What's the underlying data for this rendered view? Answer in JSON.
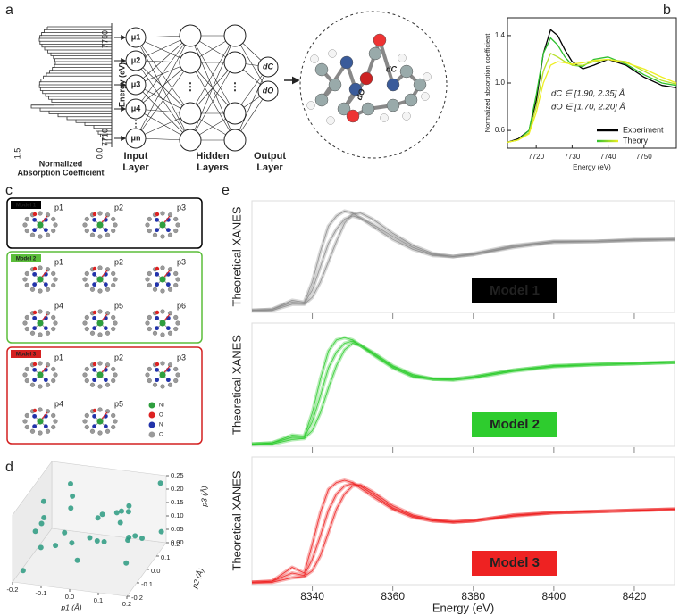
{
  "figure": {
    "panel_labels": [
      "a",
      "b",
      "c",
      "d",
      "e"
    ],
    "panel_a": {
      "energy_max": "7760",
      "energy_min": "7710",
      "energy_label": "Energy (eV)",
      "absorption_max": "1.5",
      "absorption_min": "0.0",
      "absorption_label": [
        "Normalized",
        "Absorption Coefficient"
      ],
      "inputs": [
        "μ1",
        "μ2",
        "μ3",
        "μ4",
        "μn"
      ],
      "input_layer": [
        "Input",
        "Layer"
      ],
      "hidden_layers": [
        "Hidden",
        "Layers"
      ],
      "output_layer": [
        "Output",
        "Layer"
      ],
      "outputs": [
        "dC",
        "dO"
      ]
    },
    "panel_c": {
      "models": [
        {
          "name": "Model 1",
          "params": [
            "p1",
            "p2",
            "p3"
          ]
        },
        {
          "name": "Model 2",
          "params": [
            "p1",
            "p2",
            "p3",
            "p4",
            "p5",
            "p6"
          ]
        },
        {
          "name": "Model 3",
          "params": [
            "p1",
            "p2",
            "p3",
            "p4",
            "p5"
          ]
        }
      ],
      "legend": [
        "Ni",
        "O",
        "N",
        "C"
      ]
    }
  },
  "chart_data": [
    {
      "type": "line",
      "x": [
        7712,
        7715,
        7718,
        7720,
        7722,
        7724,
        7726,
        7728,
        7730,
        7733,
        7736,
        7740,
        7745,
        7750,
        7755,
        7759
      ],
      "xlim": [
        7712,
        7759
      ],
      "xticks": [
        7720,
        7730,
        7740,
        7750
      ],
      "ylim": [
        0.45,
        1.55
      ],
      "yticks": [
        0.6,
        {
          "value": 1,
          "label": "1.0"
        },
        1.4
      ],
      "xlabel": "Energy (eV)",
      "ylabel": "Normalized absorption coefficient",
      "annotations": [
        "dC ∈ [1.90, 2.35] Å",
        "dO ∈ [1.70, 2.20] Å"
      ],
      "legend": "lower right",
      "series": [
        {
          "name": "Experiment",
          "color": "#000000",
          "values": [
            0.5,
            0.53,
            0.6,
            0.85,
            1.25,
            1.45,
            1.4,
            1.28,
            1.18,
            1.12,
            1.15,
            1.2,
            1.15,
            1.05,
            0.98,
            0.96
          ]
        },
        {
          "name": "Theory",
          "color": "#2fc02f",
          "values": [
            0.5,
            0.52,
            0.6,
            0.9,
            1.25,
            1.38,
            1.32,
            1.22,
            1.15,
            1.14,
            1.2,
            1.22,
            1.16,
            1.07,
            1.0,
            0.98
          ]
        },
        {
          "color": "#b6e02a",
          "values": [
            0.5,
            0.52,
            0.58,
            0.8,
            1.1,
            1.25,
            1.22,
            1.18,
            1.15,
            1.15,
            1.18,
            1.2,
            1.18,
            1.1,
            1.02,
            0.99
          ]
        },
        {
          "color": "#eeee22",
          "values": [
            0.5,
            0.52,
            0.57,
            0.75,
            1.0,
            1.15,
            1.18,
            1.17,
            1.16,
            1.17,
            1.19,
            1.2,
            1.17,
            1.12,
            1.05,
            1.0
          ]
        }
      ]
    },
    {
      "type": "line",
      "x": [
        8325,
        8330,
        8335,
        8338,
        8340,
        8342,
        8344,
        8346,
        8348,
        8350,
        8352,
        8355,
        8360,
        8365,
        8370,
        8375,
        8380,
        8390,
        8400,
        8410,
        8420,
        8430
      ],
      "xlim": [
        8325,
        8430
      ],
      "ylim": [
        0,
        1.1
      ],
      "ylabel": "Theoretical XANES",
      "annotation": "Model 1",
      "series": [
        {
          "color": "#8c8c8c",
          "values": [
            0.02,
            0.03,
            0.12,
            0.1,
            0.3,
            0.6,
            0.85,
            0.95,
            1.0,
            0.98,
            0.93,
            0.85,
            0.72,
            0.62,
            0.56,
            0.55,
            0.58,
            0.66,
            0.7,
            0.7,
            0.72,
            0.72
          ]
        },
        {
          "color": "#8c8c8c",
          "values": [
            0.02,
            0.02,
            0.08,
            0.08,
            0.15,
            0.3,
            0.5,
            0.7,
            0.88,
            0.97,
            0.98,
            0.92,
            0.78,
            0.66,
            0.58,
            0.55,
            0.57,
            0.64,
            0.69,
            0.7,
            0.71,
            0.72
          ]
        },
        {
          "color": "#8c8c8c",
          "values": [
            0.02,
            0.03,
            0.1,
            0.09,
            0.22,
            0.45,
            0.68,
            0.82,
            0.92,
            0.95,
            0.93,
            0.87,
            0.75,
            0.64,
            0.57,
            0.55,
            0.57,
            0.65,
            0.7,
            0.7,
            0.71,
            0.72
          ]
        }
      ]
    },
    {
      "type": "line",
      "x": [
        8325,
        8330,
        8335,
        8338,
        8340,
        8342,
        8344,
        8346,
        8348,
        8350,
        8352,
        8355,
        8360,
        8365,
        8370,
        8375,
        8380,
        8390,
        8400,
        8410,
        8420,
        8430
      ],
      "xlim": [
        8325,
        8430
      ],
      "ylim": [
        0,
        1.1
      ],
      "ylabel": "Theoretical XANES",
      "annotation": "Model 2",
      "series": [
        {
          "color": "#2ecc2e",
          "values": [
            0.02,
            0.03,
            0.1,
            0.09,
            0.3,
            0.6,
            0.85,
            0.95,
            0.97,
            0.95,
            0.9,
            0.82,
            0.7,
            0.62,
            0.6,
            0.6,
            0.62,
            0.68,
            0.72,
            0.73,
            0.74,
            0.75
          ]
        },
        {
          "color": "#2ecc2e",
          "values": [
            0.02,
            0.02,
            0.06,
            0.07,
            0.14,
            0.3,
            0.52,
            0.72,
            0.86,
            0.92,
            0.9,
            0.84,
            0.72,
            0.64,
            0.6,
            0.59,
            0.61,
            0.67,
            0.71,
            0.73,
            0.74,
            0.75
          ]
        },
        {
          "color": "#2ecc2e",
          "values": [
            0.02,
            0.03,
            0.08,
            0.08,
            0.22,
            0.45,
            0.7,
            0.84,
            0.92,
            0.94,
            0.9,
            0.83,
            0.71,
            0.63,
            0.6,
            0.6,
            0.62,
            0.68,
            0.72,
            0.73,
            0.74,
            0.75
          ]
        }
      ]
    },
    {
      "type": "line",
      "x": [
        8325,
        8330,
        8335,
        8338,
        8340,
        8342,
        8344,
        8346,
        8348,
        8350,
        8352,
        8355,
        8360,
        8365,
        8370,
        8375,
        8380,
        8390,
        8400,
        8410,
        8420,
        8430
      ],
      "xlim": [
        8325,
        8430
      ],
      "xticks": [
        8340,
        8360,
        8380,
        8400,
        8420
      ],
      "ylim": [
        0,
        1.1
      ],
      "xlabel": "Energy (eV)",
      "ylabel": "Theoretical XANES",
      "annotation": "Model 3",
      "series": [
        {
          "color": "#ee2222",
          "values": [
            0.02,
            0.03,
            0.15,
            0.1,
            0.35,
            0.62,
            0.82,
            0.88,
            0.9,
            0.88,
            0.83,
            0.76,
            0.65,
            0.58,
            0.55,
            0.54,
            0.55,
            0.6,
            0.62,
            0.63,
            0.64,
            0.65
          ]
        },
        {
          "color": "#ee2222",
          "values": [
            0.02,
            0.02,
            0.06,
            0.07,
            0.12,
            0.25,
            0.45,
            0.65,
            0.78,
            0.85,
            0.86,
            0.8,
            0.68,
            0.6,
            0.56,
            0.54,
            0.55,
            0.59,
            0.62,
            0.63,
            0.64,
            0.65
          ]
        },
        {
          "color": "#ee2222",
          "values": [
            0.02,
            0.03,
            0.1,
            0.08,
            0.22,
            0.42,
            0.64,
            0.78,
            0.85,
            0.87,
            0.85,
            0.78,
            0.66,
            0.59,
            0.55,
            0.54,
            0.55,
            0.6,
            0.62,
            0.63,
            0.64,
            0.65
          ]
        }
      ]
    },
    {
      "type": "scatter3d",
      "x": [
        -0.18,
        -0.1,
        0.02,
        0.12,
        0.19,
        -0.15,
        -0.05,
        0.08,
        0.16,
        -0.2,
        -0.12,
        0.0,
        0.1,
        0.18,
        -0.08,
        0.05,
        0.14,
        -0.17,
        -0.02,
        0.09,
        0.2,
        -0.13,
        0.03,
        0.15,
        -0.06,
        0.11,
        -0.19,
        0.07,
        -0.09,
        0.17
      ],
      "y": [
        -0.15,
        0.1,
        -0.18,
        0.05,
        0.18,
        -0.05,
        0.15,
        -0.1,
        0.0,
        0.12,
        -0.2,
        0.08,
        -0.14,
        0.2,
        -0.02,
        0.17,
        -0.08,
        0.03,
        -0.12,
        0.13,
        -0.18,
        0.19,
        0.0,
        0.1,
        -0.17,
        -0.04,
        0.06,
        0.2,
        0.09,
        -0.12
      ],
      "z": [
        0.02,
        0.23,
        0.1,
        0.18,
        0.05,
        0.15,
        0.01,
        0.24,
        0.12,
        0.08,
        0.2,
        0.04,
        0.16,
        0.22,
        0.11,
        0.07,
        0.25,
        0.19,
        0.13,
        0.03,
        0.21,
        0.09,
        0.17,
        0.06,
        0.14,
        0.22,
        0.0,
        0.12,
        0.19,
        0.08
      ],
      "xlim": [
        -0.2,
        0.2
      ],
      "ylim": [
        -0.2,
        0.2
      ],
      "zlim": [
        0,
        0.25
      ],
      "xticks": [
        -0.2,
        -0.1,
        {
          "value": 0,
          "label": "0.0"
        },
        0.1,
        0.2
      ],
      "yticks": [
        -0.2,
        -0.1,
        {
          "value": 0,
          "label": "0.0"
        },
        0.1,
        0.2
      ],
      "zticks": [
        {
          "value": 0,
          "label": "0.00"
        },
        0.05,
        {
          "value": 0.1,
          "label": "0.10"
        },
        0.15,
        {
          "value": 0.2,
          "label": "0.20"
        },
        0.25
      ],
      "xlabel": "p1 (Å)",
      "ylabel": "p2 (Å)",
      "zlabel": "p3 (Å)",
      "color": "#2a9a80"
    }
  ]
}
